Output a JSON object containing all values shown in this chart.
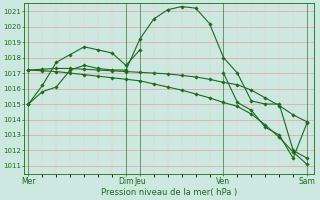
{
  "bg_color": "#cce8e0",
  "grid_color_major": "#e8a0a0",
  "grid_color_minor": "#e8c8c8",
  "line_color": "#1a6b1a",
  "ylim": [
    1010.5,
    1021.5
  ],
  "yticks": [
    1011,
    1012,
    1013,
    1014,
    1015,
    1016,
    1017,
    1018,
    1019,
    1020,
    1021
  ],
  "xlabel": "Pression niveau de la mer( hPa )",
  "vline_positions": [
    0,
    7,
    8,
    14,
    20
  ],
  "xtick_positions": [
    0,
    7,
    8,
    14,
    20
  ],
  "xtick_labels": [
    "Mer",
    "Dim",
    "Jeu",
    "Ven",
    "Sam"
  ],
  "xlim": [
    -0.3,
    20.5
  ],
  "series1_x": [
    0,
    1,
    2,
    3,
    4,
    5,
    6,
    7,
    8,
    9,
    10,
    11,
    12,
    13,
    14,
    15,
    16,
    17,
    18,
    19,
    20
  ],
  "series1_y": [
    1015.0,
    1015.8,
    1016.1,
    1017.2,
    1017.5,
    1017.3,
    1017.2,
    1017.2,
    1019.2,
    1020.5,
    1021.1,
    1021.3,
    1021.2,
    1020.2,
    1018.0,
    1017.0,
    1015.2,
    1015.0,
    1015.0,
    1012.0,
    1011.5
  ],
  "series2_x": [
    0,
    1,
    2,
    3,
    4,
    5,
    6,
    7,
    8
  ],
  "series2_y": [
    1015.0,
    1016.2,
    1017.7,
    1018.2,
    1018.7,
    1018.5,
    1018.3,
    1017.5,
    1018.5
  ],
  "series3_x": [
    0,
    1,
    2,
    3,
    4,
    5,
    6,
    7,
    8,
    9,
    10,
    11,
    12,
    13,
    14,
    15,
    16,
    17,
    18,
    19,
    20
  ],
  "series3_y": [
    1017.2,
    1017.25,
    1017.3,
    1017.3,
    1017.25,
    1017.2,
    1017.15,
    1017.1,
    1017.05,
    1017.0,
    1016.95,
    1016.85,
    1016.75,
    1016.6,
    1016.4,
    1016.25,
    1015.9,
    1015.4,
    1014.9,
    1014.3,
    1013.85
  ],
  "series4_x": [
    0,
    1,
    2,
    3,
    4,
    5,
    6,
    7,
    8,
    9,
    10,
    11,
    12,
    13,
    14,
    15,
    16,
    17,
    18,
    19,
    20
  ],
  "series4_y": [
    1017.2,
    1017.15,
    1017.1,
    1017.0,
    1016.9,
    1016.8,
    1016.7,
    1016.6,
    1016.5,
    1016.3,
    1016.1,
    1015.9,
    1015.65,
    1015.4,
    1015.1,
    1014.85,
    1014.35,
    1013.65,
    1012.85,
    1011.9,
    1011.1
  ],
  "series5_x": [
    14,
    15,
    16,
    17,
    18,
    19,
    20
  ],
  "series5_y": [
    1017.0,
    1015.1,
    1014.6,
    1013.5,
    1013.0,
    1011.5,
    1013.8
  ]
}
